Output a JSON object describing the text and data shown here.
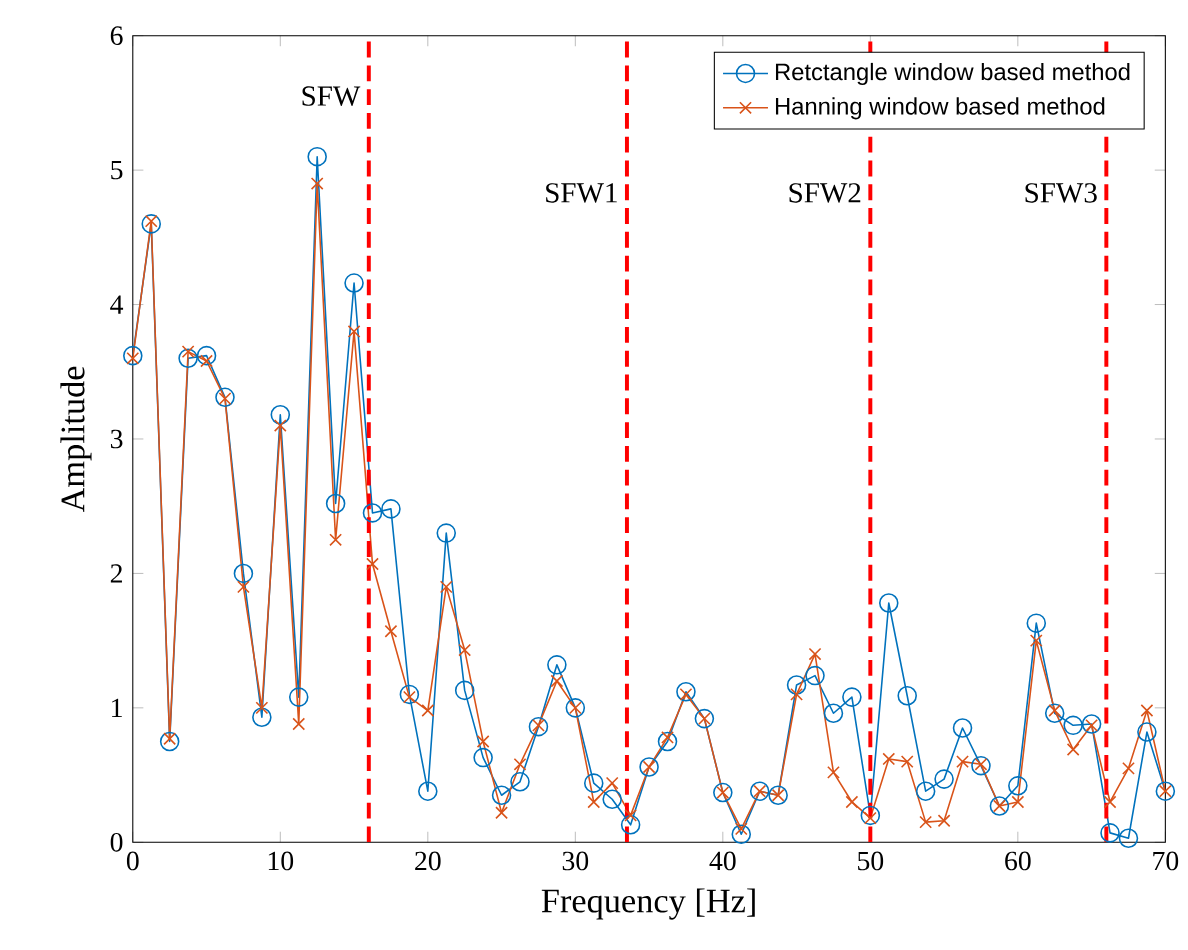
{
  "chart_data": {
    "type": "line",
    "xlabel": "Frequency [Hz]",
    "ylabel": "Amplitude",
    "x": [
      0,
      1.25,
      2.5,
      3.75,
      5,
      6.25,
      7.5,
      8.75,
      10,
      11.25,
      12.5,
      13.75,
      15,
      16.25,
      17.5,
      18.75,
      20,
      21.25,
      22.5,
      23.75,
      25,
      26.25,
      27.5,
      28.75,
      30,
      31.25,
      32.5,
      33.75,
      35,
      36.25,
      37.5,
      38.75,
      40,
      41.25,
      42.5,
      43.75,
      45,
      46.25,
      47.5,
      48.75,
      50,
      51.25,
      52.5,
      53.75,
      55,
      56.25,
      57.5,
      58.75,
      60,
      61.25,
      62.5,
      63.75,
      65,
      66.25,
      67.5,
      68.75,
      70
    ],
    "series": [
      {
        "name": "Retctangle window based method",
        "color": "#0072bd",
        "marker": "circle",
        "values": [
          3.62,
          4.6,
          0.75,
          3.6,
          3.62,
          3.31,
          2.0,
          0.93,
          3.18,
          1.08,
          5.1,
          2.52,
          4.16,
          2.45,
          2.48,
          1.1,
          0.38,
          2.3,
          1.13,
          0.63,
          0.35,
          0.45,
          0.86,
          1.32,
          1.0,
          0.44,
          0.32,
          0.13,
          0.56,
          0.75,
          1.12,
          0.92,
          0.37,
          0.06,
          0.38,
          0.35,
          1.17,
          1.24,
          0.96,
          1.08,
          0.2,
          1.78,
          1.09,
          0.38,
          0.47,
          0.85,
          0.57,
          0.27,
          0.42,
          1.63,
          0.96,
          0.87,
          0.88,
          0.07,
          0.03,
          0.82,
          0.38
        ]
      },
      {
        "name": "Hanning window based method",
        "color": "#d95319",
        "marker": "cross",
        "values": [
          3.6,
          4.62,
          0.77,
          3.65,
          3.58,
          3.3,
          1.9,
          1.0,
          3.1,
          0.88,
          4.9,
          2.25,
          3.8,
          2.07,
          1.57,
          1.08,
          0.98,
          1.9,
          1.43,
          0.75,
          0.22,
          0.58,
          0.87,
          1.2,
          1.0,
          0.3,
          0.44,
          0.2,
          0.56,
          0.78,
          1.1,
          0.92,
          0.37,
          0.1,
          0.38,
          0.35,
          1.1,
          1.4,
          0.52,
          0.3,
          0.18,
          0.62,
          0.6,
          0.15,
          0.16,
          0.6,
          0.58,
          0.27,
          0.3,
          1.5,
          0.98,
          0.69,
          0.87,
          0.3,
          0.55,
          0.98,
          0.38
        ]
      }
    ],
    "xlim": [
      0,
      70
    ],
    "ylim": [
      0,
      6
    ],
    "xticks": [
      0,
      10,
      20,
      30,
      40,
      50,
      60,
      70
    ],
    "yticks": [
      0,
      1,
      2,
      3,
      4,
      5,
      6
    ],
    "ref_lines": [
      {
        "axis": "x",
        "value": 16,
        "label": "SFW",
        "color": "#ff0000",
        "line_style": "dashed"
      },
      {
        "axis": "x",
        "value": 33.5,
        "label": "SFW1",
        "color": "#ff0000",
        "line_style": "dashed"
      },
      {
        "axis": "x",
        "value": 50,
        "label": "SFW2",
        "color": "#ff0000",
        "line_style": "dashed"
      },
      {
        "axis": "x",
        "value": 66,
        "label": "SFW3",
        "color": "#ff0000",
        "line_style": "dashed"
      }
    ],
    "grid": false,
    "legend": "top right",
    "line_style": "solid"
  }
}
